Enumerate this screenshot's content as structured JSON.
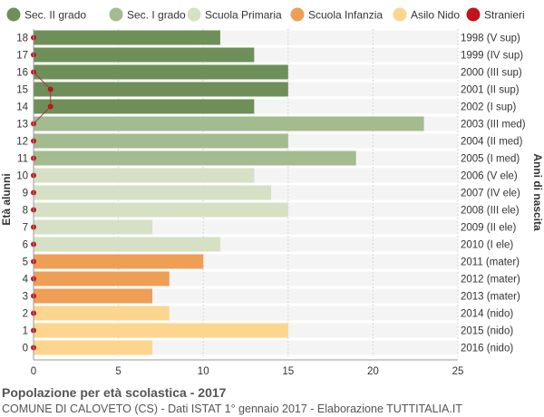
{
  "chart_data": {
    "type": "bar",
    "orientation": "horizontal",
    "title": "Popolazione per età scolastica - 2017",
    "subtitle": "COMUNE DI CALOVETO (CS) - Dati ISTAT 1° gennaio 2017 - Elaborazione TUTTITALIA.IT",
    "ylabel": "Età alunni",
    "ylabel_right": "Anni di nascita",
    "xlim": [
      0,
      25
    ],
    "xticks": [
      0,
      5,
      10,
      15,
      20,
      25
    ],
    "grid": true,
    "legend_position": "top",
    "legend": [
      {
        "name": "Sec. II grado",
        "color": "#6e8f58"
      },
      {
        "name": "Sec. I grado",
        "color": "#a3bb8f"
      },
      {
        "name": "Scuola Primaria",
        "color": "#d5e0c5"
      },
      {
        "name": "Scuola Infanzia",
        "color": "#ee9e55"
      },
      {
        "name": "Asilo Nido",
        "color": "#fcd68e"
      },
      {
        "name": "Stranieri",
        "color": "#c0141a"
      }
    ],
    "rows": [
      {
        "age": "18",
        "year": "1998 (V sup)",
        "value": 11,
        "group": 0,
        "stranieri": 0
      },
      {
        "age": "17",
        "year": "1999 (IV sup)",
        "value": 13,
        "group": 0,
        "stranieri": 0
      },
      {
        "age": "16",
        "year": "2000 (III sup)",
        "value": 15,
        "group": 0,
        "stranieri": 0
      },
      {
        "age": "15",
        "year": "2001 (II sup)",
        "value": 15,
        "group": 0,
        "stranieri": 1
      },
      {
        "age": "14",
        "year": "2002 (I sup)",
        "value": 13,
        "group": 0,
        "stranieri": 1
      },
      {
        "age": "13",
        "year": "2003 (III med)",
        "value": 23,
        "group": 1,
        "stranieri": 0
      },
      {
        "age": "12",
        "year": "2004 (II med)",
        "value": 15,
        "group": 1,
        "stranieri": 0
      },
      {
        "age": "11",
        "year": "2005 (I med)",
        "value": 19,
        "group": 1,
        "stranieri": 0
      },
      {
        "age": "10",
        "year": "2006 (V ele)",
        "value": 13,
        "group": 2,
        "stranieri": 0
      },
      {
        "age": "9",
        "year": "2007 (IV ele)",
        "value": 14,
        "group": 2,
        "stranieri": 0
      },
      {
        "age": "8",
        "year": "2008 (III ele)",
        "value": 15,
        "group": 2,
        "stranieri": 0
      },
      {
        "age": "7",
        "year": "2009 (II ele)",
        "value": 7,
        "group": 2,
        "stranieri": 0
      },
      {
        "age": "6",
        "year": "2010 (I ele)",
        "value": 11,
        "group": 2,
        "stranieri": 0
      },
      {
        "age": "5",
        "year": "2011 (mater)",
        "value": 10,
        "group": 3,
        "stranieri": 0
      },
      {
        "age": "4",
        "year": "2012 (mater)",
        "value": 8,
        "group": 3,
        "stranieri": 0
      },
      {
        "age": "3",
        "year": "2013 (mater)",
        "value": 7,
        "group": 3,
        "stranieri": 0
      },
      {
        "age": "2",
        "year": "2014 (nido)",
        "value": 8,
        "group": 4,
        "stranieri": 0
      },
      {
        "age": "1",
        "year": "2015 (nido)",
        "value": 15,
        "group": 4,
        "stranieri": 0
      },
      {
        "age": "0",
        "year": "2016 (nido)",
        "value": 7,
        "group": 4,
        "stranieri": 0
      }
    ]
  }
}
